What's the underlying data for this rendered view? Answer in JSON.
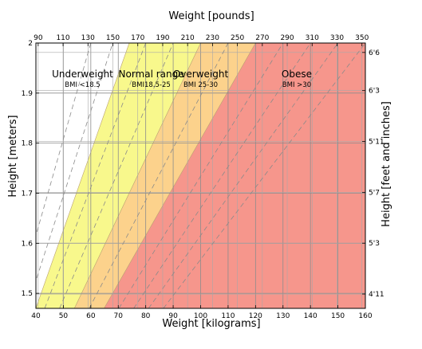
{
  "chart_data": {
    "type": "area",
    "title": "",
    "xlabel": "Weight [kilograms]",
    "ylabel": "Height [meters]",
    "x2label": "Weight [pounds]",
    "y2label": "Height [feet and inches]",
    "xlim": [
      40,
      160
    ],
    "ylim": [
      1.47,
      2.0
    ],
    "grid": true,
    "x_ticks": [
      40,
      50,
      60,
      70,
      80,
      90,
      100,
      110,
      120,
      130,
      140,
      150,
      160
    ],
    "y_ticks": [
      1.5,
      1.6,
      1.7,
      1.8,
      1.9,
      2.0
    ],
    "x_tick_labels": [
      "40",
      "50",
      "60",
      "70",
      "80",
      "90",
      "100",
      "110",
      "120",
      "130",
      "140",
      "150",
      "160"
    ],
    "y_tick_labels": [
      "1.5",
      "1.6",
      "1.7",
      "1.8",
      "1.9",
      "2"
    ],
    "x2_ticks_lb": [
      90,
      110,
      130,
      150,
      170,
      190,
      210,
      230,
      250,
      270,
      290,
      310,
      330,
      350
    ],
    "x2_tick_labels": [
      "90",
      "110",
      "130",
      "150",
      "170",
      "190",
      "210",
      "230",
      "250",
      "270",
      "290",
      "310",
      "330",
      "350"
    ],
    "y2_ticks_in": [
      59,
      63,
      67,
      71,
      75,
      78
    ],
    "y2_tick_labels": [
      "4'11",
      "5'3",
      "5'7",
      "5'11",
      "6'3",
      "6'6"
    ],
    "bmi_boundaries": [
      18.5,
      25,
      30
    ],
    "dashed_bmi_lines": [
      15,
      17,
      20,
      22.5,
      27.5,
      32.5,
      35,
      37.5,
      40
    ],
    "regions": [
      {
        "name": "Underweight",
        "range": "BMI <18.5",
        "bmi_min": 0,
        "bmi_max": 18.5,
        "color": "#ffffff",
        "label_x": 57,
        "label_y": 1.925
      },
      {
        "name": "Normal range",
        "range": "BMI18.5-25",
        "bmi_min": 18.5,
        "bmi_max": 25,
        "color": "#f8f88c",
        "label_x": 82,
        "label_y": 1.925
      },
      {
        "name": "Overweight",
        "range": "BMI 25-30",
        "bmi_min": 25,
        "bmi_max": 30,
        "color": "#fcd28c",
        "label_x": 100,
        "label_y": 1.925
      },
      {
        "name": "Obese",
        "range": "BMI >30",
        "bmi_min": 30,
        "bmi_max": 1000,
        "color": "#f6968c",
        "label_x": 135,
        "label_y": 1.925
      }
    ]
  }
}
